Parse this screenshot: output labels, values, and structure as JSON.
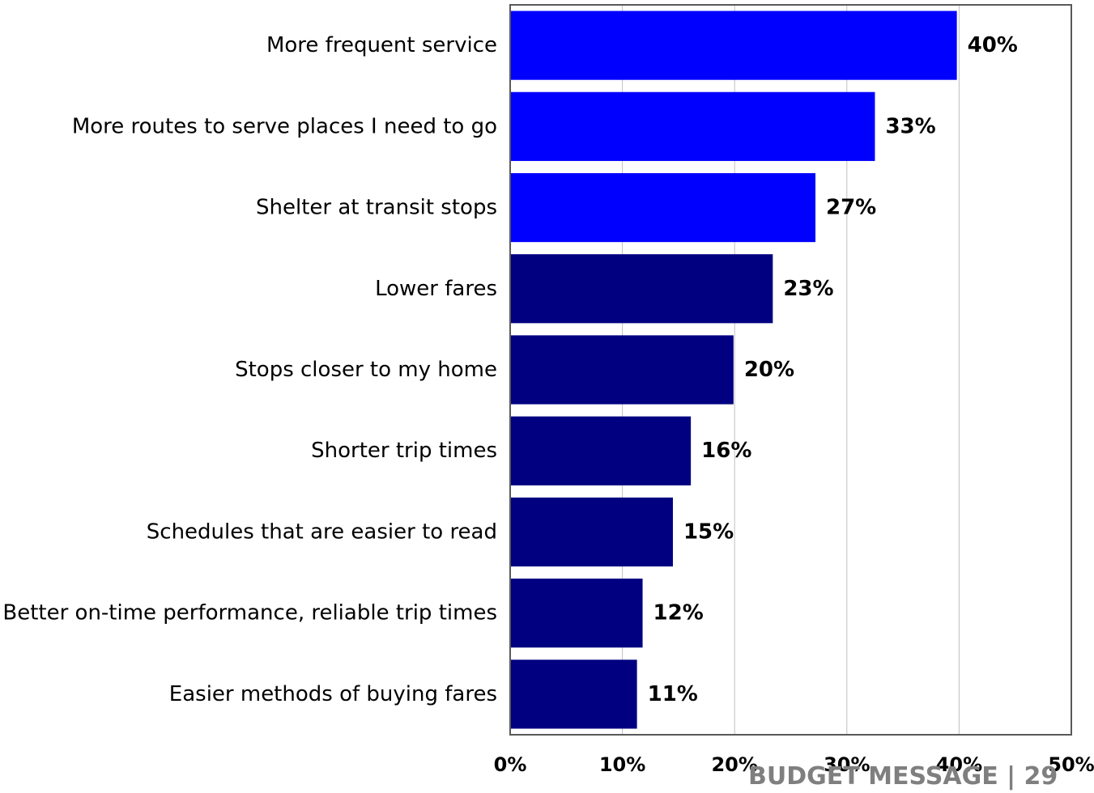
{
  "chart_data": {
    "type": "bar",
    "orientation": "horizontal",
    "categories": [
      "More frequent service",
      "More routes to serve places I need to go",
      "Shelter at transit stops",
      "Lower fares",
      "Stops closer to my home",
      "Shorter trip times",
      "Schedules that are easier to read",
      "Better on-time performance, reliable trip times",
      "Easier methods of buying fares"
    ],
    "values": [
      39.8,
      32.5,
      27.2,
      23.4,
      19.9,
      16.1,
      14.5,
      11.8,
      11.3
    ],
    "value_labels": [
      "40%",
      "33%",
      "27%",
      "23%",
      "20%",
      "16%",
      "15%",
      "12%",
      "11%"
    ],
    "bar_colors": [
      "#0000ff",
      "#0000ff",
      "#0000ff",
      "#000080",
      "#000080",
      "#000080",
      "#000080",
      "#000080",
      "#000080"
    ],
    "xlim": [
      0,
      50
    ],
    "x_ticks": [
      0,
      10,
      20,
      30,
      40,
      50
    ],
    "x_tick_labels": [
      "0%",
      "10%",
      "20%",
      "30%",
      "40%",
      "50%"
    ],
    "grid": "vertical",
    "title": "",
    "xlabel": "",
    "ylabel": ""
  },
  "footer": {
    "text": "BUDGET MESSAGE | 29"
  },
  "colors": {
    "highlight_bar": "#0000ff",
    "bar": "#000080",
    "gridline": "#c0c0c0",
    "footer": "#7f7f7f"
  }
}
